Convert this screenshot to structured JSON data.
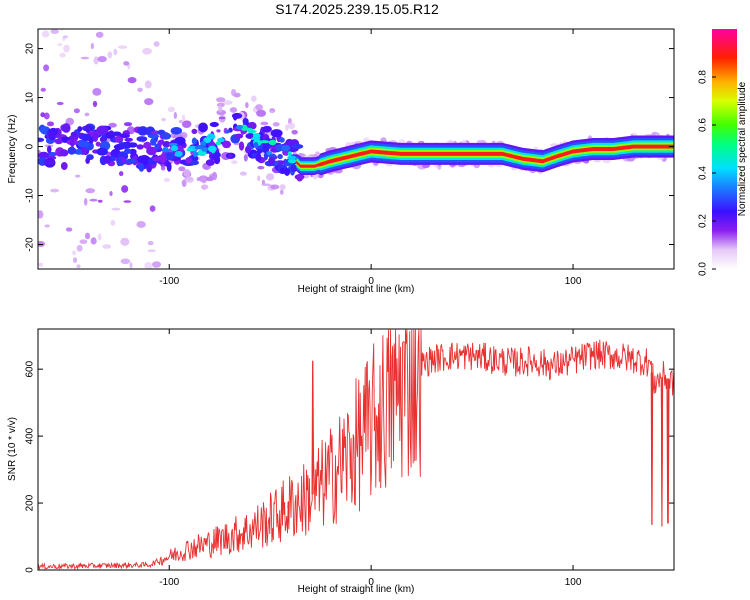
{
  "title": "S174.2025.239.15.05.R12",
  "colorbar": {
    "label": "Normalized spectral amplitude",
    "ticks": [
      "0.0",
      "0.2",
      "0.4",
      "0.6",
      "0.8"
    ],
    "range": [
      0,
      1
    ]
  },
  "chart_data": [
    {
      "type": "heatmap",
      "xlabel": "Height of straight line (km)",
      "ylabel": "Frequency (Hz)",
      "xlim": [
        -165,
        150
      ],
      "ylim": [
        -25,
        24
      ],
      "xticks": [
        -100,
        0,
        100
      ],
      "yticks": [
        -20,
        -10,
        0,
        10,
        20
      ],
      "ridge": {
        "x": [
          -165,
          -120,
          -100,
          -85,
          -75,
          -65,
          -55,
          -45,
          -40,
          -35,
          -28,
          -20,
          -10,
          0,
          15,
          30,
          50,
          65,
          75,
          85,
          92,
          100,
          110,
          120,
          130,
          140,
          150
        ],
        "freq": [
          0,
          0,
          -1,
          0,
          1,
          3,
          1,
          -1,
          -2,
          -4,
          -4,
          -3,
          -2,
          -1,
          -1.5,
          -1.5,
          -1.5,
          -1.5,
          -2.5,
          -3,
          -2,
          -1,
          -0.5,
          -0.5,
          0,
          0,
          0
        ]
      }
    },
    {
      "type": "line",
      "xlabel": "Height of straight line (km)",
      "ylabel": "SNR (10 * v/v)",
      "xlim": [
        -165,
        150
      ],
      "ylim": [
        0,
        720
      ],
      "xticks": [
        -100,
        0,
        100
      ],
      "yticks": [
        0,
        200,
        400,
        600
      ],
      "series": [
        {
          "name": "SNR",
          "color": "#e83030",
          "x": [
            -165,
            -110,
            -100,
            -90,
            -80,
            -70,
            -60,
            -50,
            -40,
            -30,
            -20,
            -10,
            0,
            10,
            20,
            30,
            40,
            50,
            60,
            70,
            80,
            90,
            100,
            110,
            120,
            130,
            138,
            140,
            145,
            150
          ],
          "mean": [
            10,
            15,
            40,
            65,
            80,
            100,
            120,
            150,
            190,
            220,
            280,
            350,
            430,
            510,
            590,
            630,
            640,
            640,
            630,
            620,
            625,
            610,
            625,
            645,
            640,
            630,
            620,
            560,
            580,
            560
          ],
          "spikes": [
            {
              "x": -29,
              "y": 625
            },
            {
              "x": -41,
              "y": 205
            },
            {
              "x": 139,
              "y": 135
            },
            {
              "x": 144,
              "y": 130
            },
            {
              "x": 147,
              "y": 140
            }
          ]
        }
      ]
    }
  ]
}
